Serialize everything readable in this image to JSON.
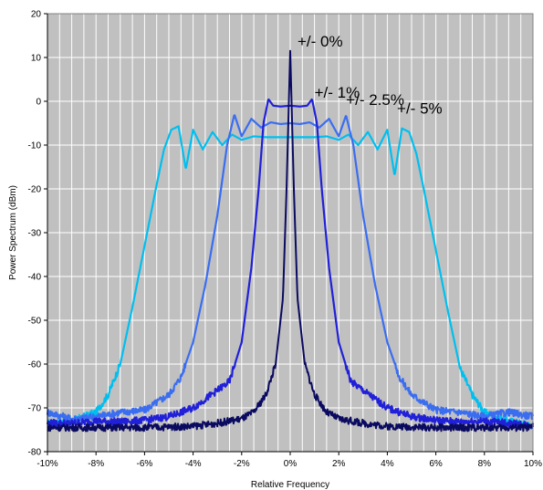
{
  "chart_data": {
    "type": "line",
    "xlabel": "Relative Frequency",
    "ylabel": "Power Spectrum (dBm)",
    "xlim": [
      -10,
      10
    ],
    "ylim": [
      -80,
      20
    ],
    "x_ticks": [
      -10,
      -8,
      -6,
      -4,
      -2,
      0,
      2,
      4,
      6,
      8,
      10
    ],
    "x_tick_labels": [
      "-10%",
      "-8%",
      "-6%",
      "-4%",
      "-2%",
      "0%",
      "2%",
      "4%",
      "6%",
      "8%",
      "10%"
    ],
    "y_ticks": [
      -80,
      -70,
      -60,
      -50,
      -40,
      -30,
      -20,
      -10,
      0,
      10,
      20
    ],
    "y_tick_labels": [
      "-80",
      "-70",
      "-60",
      "-50",
      "-40",
      "-30",
      "-20",
      "-10",
      "0",
      "10",
      "20"
    ],
    "x_grid_step": 0.5,
    "y_grid_step": 10,
    "plot_background": "#c0c0c0",
    "grid_color": "#ffffff",
    "series": [
      {
        "color": "#00bfef",
        "half_width": 4.5,
        "edge": 4.65,
        "flat_level": -8.2,
        "peak_level": -5.8,
        "fall_width": 1.5,
        "floor": -73.6,
        "x": [
          -10,
          -9,
          -8,
          -7.5,
          -7,
          -6.5,
          -6,
          -5.5,
          -5.2,
          -4.9,
          -4.6,
          -4.3,
          -4,
          -3.6,
          -3.2,
          -2.8,
          -2.4,
          -2,
          -1.5,
          -1,
          0,
          1,
          1.5,
          2,
          2.4,
          2.8,
          3.2,
          3.6,
          4,
          4.3,
          4.6,
          4.9,
          5.2,
          5.5,
          6,
          6.5,
          7,
          7.5,
          8,
          9,
          10
        ],
        "y": [
          -73.5,
          -73,
          -71,
          -67,
          -60,
          -47,
          -33,
          -19,
          -11,
          -6.5,
          -5.7,
          -15.5,
          -6.5,
          -11,
          -7,
          -10,
          -7.6,
          -8.8,
          -8,
          -8.2,
          -8.2,
          -8.2,
          -8,
          -8.8,
          -7.6,
          -10,
          -7,
          -11,
          -6.5,
          -17,
          -6.2,
          -7,
          -12,
          -20,
          -34,
          -48,
          -61,
          -67,
          -71,
          -73,
          -74
        ]
      },
      {
        "color": "#3a6df0",
        "half_width": 2.3,
        "edge": 2.3,
        "flat_level": -5,
        "peak_level": -3,
        "fall_width": 1.3,
        "floor": -73.2,
        "x": [
          -10,
          -9,
          -8,
          -7,
          -6,
          -5,
          -4.5,
          -4,
          -3.5,
          -3,
          -2.6,
          -2.3,
          -2,
          -1.6,
          -1.2,
          -0.8,
          -0.4,
          0,
          0.4,
          0.8,
          1.2,
          1.6,
          2,
          2.3,
          2.6,
          3,
          3.5,
          4,
          4.5,
          5,
          6,
          7,
          8,
          9,
          10
        ],
        "y": [
          -71,
          -72.5,
          -72,
          -71,
          -70.5,
          -67,
          -63,
          -55,
          -42,
          -26,
          -10,
          -3,
          -8,
          -4,
          -6,
          -4.8,
          -5.2,
          -5,
          -5.2,
          -4.8,
          -6,
          -4,
          -8,
          -3.2,
          -10,
          -26,
          -42,
          -55,
          -63,
          -67,
          -70.5,
          -71,
          -72,
          -71,
          -72
        ]
      },
      {
        "color": "#2020d8",
        "half_width": 0.9,
        "edge": 0.9,
        "flat_level": -1,
        "peak_level": 0.5,
        "fall_width": 1,
        "floor": -73.6,
        "x": [
          -10,
          -9,
          -8,
          -7,
          -6,
          -5,
          -4,
          -3.5,
          -3,
          -2.5,
          -2,
          -1.6,
          -1.3,
          -1.1,
          -0.9,
          -0.7,
          -0.4,
          0,
          0.4,
          0.7,
          0.9,
          1.1,
          1.3,
          1.6,
          2,
          2.5,
          3,
          3.5,
          4,
          5,
          6,
          7,
          8,
          9,
          10
        ],
        "y": [
          -73.5,
          -73.5,
          -73,
          -73.2,
          -72.8,
          -72,
          -70,
          -68,
          -66,
          -64,
          -55,
          -38,
          -20,
          -5,
          0.5,
          -1,
          -1.2,
          -1,
          -1.2,
          -1,
          0.5,
          -5,
          -20,
          -38,
          -55,
          -64,
          -66,
          -68,
          -70,
          -72,
          -72.8,
          -73.2,
          -73,
          -73.5,
          -74
        ]
      },
      {
        "color": "#0a0a60",
        "half_width": 0,
        "edge": 0,
        "flat_level": 11.5,
        "peak_level": 11.5,
        "fall_width": 0.3,
        "floor": -74.4,
        "x": [
          -10,
          -8,
          -6,
          -4,
          -3,
          -2,
          -1.5,
          -1,
          -0.6,
          -0.3,
          -0.15,
          0,
          0.15,
          0.3,
          0.6,
          1,
          1.5,
          2,
          3,
          4,
          6,
          8,
          10
        ],
        "y": [
          -74.5,
          -74.5,
          -74.5,
          -74.2,
          -73.5,
          -72.5,
          -71,
          -67,
          -60,
          -45,
          -20,
          11.5,
          -20,
          -45,
          -60,
          -67,
          -71,
          -72.5,
          -73.5,
          -74.2,
          -74.5,
          -74.5,
          -74.5
        ]
      }
    ],
    "annotations": [
      {
        "text": "+/- 0%",
        "x": 0.3,
        "y": 12.5
      },
      {
        "text": "+/- 1%",
        "x": 1.0,
        "y": 0.8
      },
      {
        "text": "+/- 2.5%",
        "x": 2.3,
        "y": -0.8
      },
      {
        "text": "+/- 5%",
        "x": 4.4,
        "y": -2.8
      }
    ]
  }
}
